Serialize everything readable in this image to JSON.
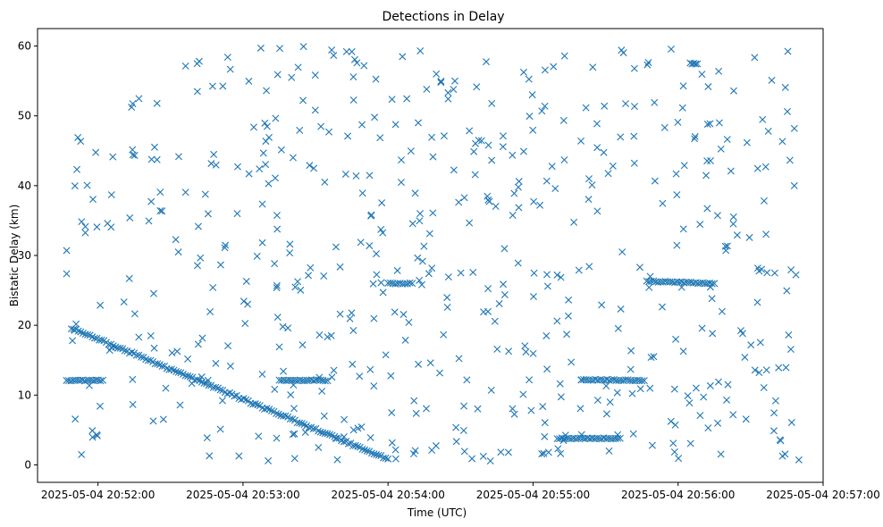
{
  "chart_data": {
    "type": "scatter",
    "title": "Detections in Delay",
    "xlabel": "Time (UTC)",
    "ylabel": "Bistatic Delay (km)",
    "marker": "x",
    "color": "#1f77b4",
    "grid": false,
    "x_time_range": [
      "2025-05-04 20:51:35",
      "2025-05-04 20:57:00"
    ],
    "ylim": [
      -2.5,
      62.5
    ],
    "x_ticks": [
      "2025-05-04 20:52:00",
      "2025-05-04 20:53:00",
      "2025-05-04 20:54:00",
      "2025-05-04 20:55:00",
      "2025-05-04 20:56:00",
      "2025-05-04 20:57:00"
    ],
    "y_ticks": [
      0,
      10,
      20,
      30,
      40,
      50,
      60
    ],
    "series": [
      {
        "name": "",
        "tracks": [
          {
            "kind": "target-track",
            "from": [
              "2025-05-04 20:51:49",
              19.6
            ],
            "to": [
              "2025-05-04 20:54:00",
              0.8
            ]
          },
          {
            "kind": "clutter-line",
            "from": [
              "2025-05-04 20:51:47",
              12.1
            ],
            "to": [
              "2025-05-04 20:52:02",
              12.1
            ]
          },
          {
            "kind": "clutter-line",
            "from": [
              "2025-05-04 20:53:15",
              12.1
            ],
            "to": [
              "2025-05-04 20:53:35",
              12.1
            ]
          },
          {
            "kind": "clutter-line",
            "from": [
              "2025-05-04 20:55:20",
              12.2
            ],
            "to": [
              "2025-05-04 20:55:46",
              12.1
            ]
          },
          {
            "kind": "clutter-line",
            "from": [
              "2025-05-04 20:55:10",
              3.8
            ],
            "to": [
              "2025-05-04 20:55:36",
              3.8
            ]
          },
          {
            "kind": "clutter-line",
            "from": [
              "2025-05-04 20:55:47",
              26.3
            ],
            "to": [
              "2025-05-04 20:56:15",
              26.0
            ]
          },
          {
            "kind": "clutter-line",
            "from": [
              "2025-05-04 20:54:00",
              26.0
            ],
            "to": [
              "2025-05-04 20:54:10",
              26.0
            ]
          },
          {
            "kind": "clutter-line",
            "from": [
              "2025-05-04 20:56:05",
              57.5
            ],
            "to": [
              "2025-05-04 20:56:08",
              57.5
            ]
          }
        ]
      }
    ]
  }
}
